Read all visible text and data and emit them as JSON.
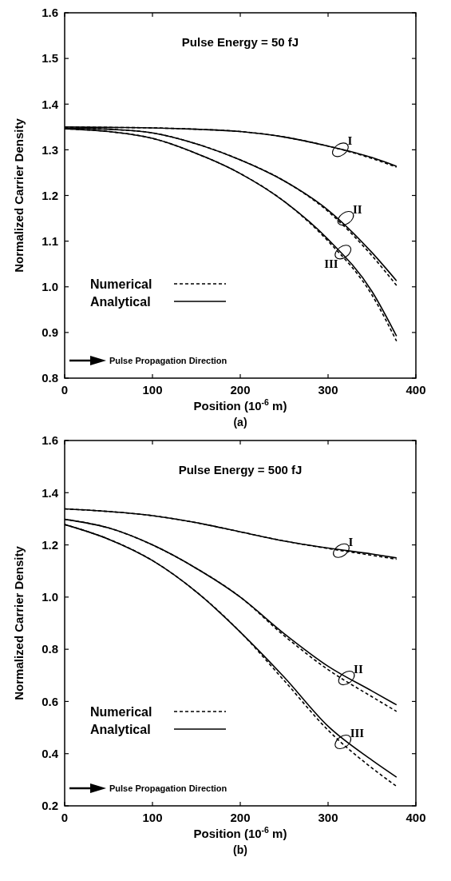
{
  "chart_data": [
    {
      "type": "line",
      "title": "Pulse Energy = 50 fJ",
      "xlabel": "Position (10$^{-6}$ m)",
      "ylabel": "Normalized Carrier Density",
      "xlim": [
        0,
        400
      ],
      "xticks": [
        0,
        100,
        200,
        300,
        400
      ],
      "ylim": [
        0.8,
        1.6
      ],
      "yticks": [
        0.8,
        0.9,
        {
          "value": 1,
          "label": "1.0"
        },
        1.1,
        1.2,
        1.3,
        1.4,
        1.5,
        1.6
      ],
      "legend": "bottom left",
      "x": [
        0,
        50,
        100,
        150,
        200,
        250,
        300,
        350,
        378
      ],
      "series": [
        {
          "name": "Analytical",
          "color": "#000000",
          "line_style": "solid",
          "values": [
            1.35,
            1.349,
            1.348,
            1.345,
            1.34,
            1.328,
            1.308,
            1.283,
            1.264
          ]
        },
        {
          "color": "#000000",
          "line_style": "solid",
          "values": [
            1.348,
            1.345,
            1.337,
            1.313,
            1.278,
            1.232,
            1.168,
            1.075,
            1.013
          ]
        },
        {
          "color": "#000000",
          "line_style": "solid",
          "values": [
            1.346,
            1.34,
            1.325,
            1.292,
            1.248,
            1.187,
            1.104,
            0.99,
            0.892
          ]
        },
        {
          "name": "Numerical",
          "color": "#000000",
          "line_style": "dashed",
          "values": [
            1.35,
            1.349,
            1.348,
            1.345,
            1.34,
            1.328,
            1.308,
            1.281,
            1.262
          ]
        },
        {
          "color": "#000000",
          "line_style": "dashed",
          "values": [
            1.348,
            1.345,
            1.337,
            1.313,
            1.278,
            1.232,
            1.165,
            1.068,
            1.003
          ]
        },
        {
          "color": "#000000",
          "line_style": "dashed",
          "values": [
            1.346,
            1.34,
            1.325,
            1.292,
            1.248,
            1.187,
            1.1,
            0.982,
            0.881
          ]
        }
      ],
      "annotations": [
        {
          "text": "I",
          "x": 314,
          "y": 1.3
        },
        {
          "text": "II",
          "x": 320,
          "y": 1.15
        },
        {
          "text": "III",
          "x": 317,
          "y": 1.076
        },
        "Pulse Propagation Direction",
        "(a)"
      ]
    },
    {
      "type": "line",
      "title": "Pulse Energy = 500 fJ",
      "xlabel": "Position (10$^{-6}$ m)",
      "ylabel": "Normalized Carrier Density",
      "xlim": [
        0,
        400
      ],
      "xticks": [
        0,
        100,
        200,
        300,
        400
      ],
      "ylim": [
        0.2,
        1.6
      ],
      "yticks": [
        0.2,
        0.4,
        0.6,
        0.8,
        {
          "value": 1,
          "label": "1.0"
        },
        1.2,
        1.4,
        1.6
      ],
      "legend": "bottom left",
      "x": [
        0,
        50,
        100,
        150,
        200,
        250,
        300,
        350,
        378
      ],
      "series": [
        {
          "name": "Analytical",
          "color": "#000000",
          "line_style": "solid",
          "values": [
            1.338,
            1.328,
            1.312,
            1.285,
            1.25,
            1.215,
            1.188,
            1.165,
            1.15
          ]
        },
        {
          "color": "#000000",
          "line_style": "solid",
          "values": [
            1.298,
            1.265,
            1.2,
            1.11,
            1.0,
            0.86,
            0.735,
            0.64,
            0.587
          ]
        },
        {
          "color": "#000000",
          "line_style": "solid",
          "values": [
            1.278,
            1.222,
            1.14,
            1.02,
            0.866,
            0.693,
            0.505,
            0.375,
            0.31
          ]
        },
        {
          "name": "Numerical",
          "color": "#000000",
          "line_style": "dashed",
          "values": [
            1.338,
            1.328,
            1.312,
            1.285,
            1.25,
            1.215,
            1.186,
            1.16,
            1.145
          ]
        },
        {
          "color": "#000000",
          "line_style": "dashed",
          "values": [
            1.298,
            1.265,
            1.2,
            1.11,
            1.0,
            0.852,
            0.722,
            0.618,
            0.562
          ]
        },
        {
          "color": "#000000",
          "line_style": "dashed",
          "values": [
            1.278,
            1.222,
            1.14,
            1.02,
            0.866,
            0.68,
            0.49,
            0.345,
            0.275
          ]
        }
      ],
      "annotations": [
        {
          "text": "I",
          "x": 315,
          "y": 1.178
        },
        {
          "text": "II",
          "x": 321,
          "y": 0.69
        },
        {
          "text": "III",
          "x": 317,
          "y": 0.445
        },
        "Pulse Propagation Direction",
        "(b)"
      ]
    }
  ]
}
